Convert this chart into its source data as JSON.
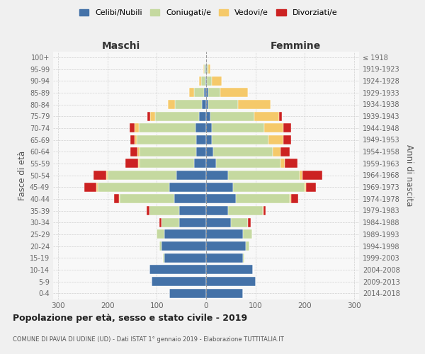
{
  "age_groups": [
    "0-4",
    "5-9",
    "10-14",
    "15-19",
    "20-24",
    "25-29",
    "30-34",
    "35-39",
    "40-44",
    "45-49",
    "50-54",
    "55-59",
    "60-64",
    "65-69",
    "70-74",
    "75-79",
    "80-84",
    "85-89",
    "90-94",
    "95-99",
    "100+"
  ],
  "birth_years": [
    "2014-2018",
    "2009-2013",
    "2004-2008",
    "1999-2003",
    "1994-1998",
    "1989-1993",
    "1984-1988",
    "1979-1983",
    "1974-1978",
    "1969-1973",
    "1964-1968",
    "1959-1963",
    "1954-1958",
    "1949-1953",
    "1944-1948",
    "1939-1943",
    "1934-1938",
    "1929-1933",
    "1924-1928",
    "1919-1923",
    "≤ 1918"
  ],
  "maschi": {
    "celibi": [
      75,
      110,
      115,
      85,
      90,
      85,
      55,
      55,
      65,
      75,
      60,
      25,
      20,
      20,
      22,
      14,
      8,
      5,
      2,
      1,
      0
    ],
    "coniugati": [
      0,
      0,
      0,
      2,
      5,
      15,
      35,
      60,
      110,
      145,
      140,
      110,
      115,
      120,
      115,
      90,
      55,
      20,
      8,
      3,
      0
    ],
    "vedovi": [
      0,
      0,
      0,
      0,
      0,
      0,
      0,
      0,
      1,
      2,
      3,
      3,
      4,
      5,
      8,
      10,
      15,
      10,
      5,
      2,
      0
    ],
    "divorziati": [
      0,
      0,
      0,
      0,
      0,
      0,
      5,
      5,
      10,
      25,
      25,
      25,
      15,
      8,
      10,
      5,
      0,
      0,
      0,
      0,
      0
    ]
  },
  "femmine": {
    "nubili": [
      75,
      100,
      95,
      75,
      80,
      75,
      50,
      45,
      60,
      55,
      45,
      20,
      15,
      12,
      12,
      8,
      5,
      4,
      2,
      1,
      0
    ],
    "coniugate": [
      0,
      0,
      0,
      3,
      8,
      18,
      35,
      70,
      110,
      145,
      145,
      130,
      120,
      115,
      105,
      90,
      60,
      25,
      10,
      3,
      0
    ],
    "vedove": [
      0,
      0,
      0,
      0,
      0,
      0,
      0,
      1,
      2,
      3,
      5,
      10,
      15,
      30,
      40,
      50,
      65,
      55,
      20,
      5,
      0
    ],
    "divorziate": [
      0,
      0,
      0,
      0,
      0,
      0,
      5,
      5,
      15,
      20,
      40,
      25,
      20,
      15,
      15,
      5,
      0,
      0,
      0,
      0,
      0
    ]
  },
  "colors": {
    "celibi": "#4472a8",
    "coniugati": "#c5d9a0",
    "vedovi": "#f5c96a",
    "divorziati": "#cc2222"
  },
  "xlim": 310,
  "title": "Popolazione per età, sesso e stato civile - 2019",
  "subtitle": "COMUNE DI PAVIA DI UDINE (UD) - Dati ISTAT 1° gennaio 2019 - Elaborazione TUTTITALIA.IT",
  "ylabel": "Fasce di età",
  "ylabel_right": "Anni di nascita",
  "xlabel_left": "Maschi",
  "xlabel_right": "Femmine",
  "bg_color": "#f0f0f0",
  "plot_bg": "#f8f8f8"
}
